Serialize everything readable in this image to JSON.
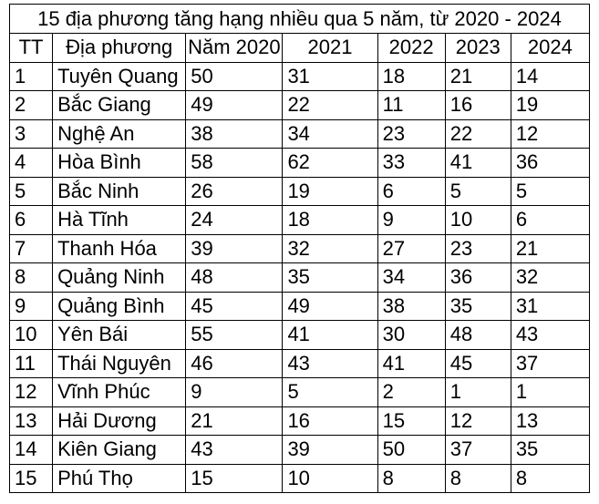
{
  "title": "15 địa phương tăng hạng nhiều qua 5 năm, từ 2020 - 2024",
  "headers": [
    "TT",
    "Địa phương",
    "Năm 2020",
    "2021",
    "2022",
    "2023",
    "2024"
  ],
  "rows": [
    [
      "1",
      "Tuyên Quang",
      "50",
      "31",
      "18",
      "21",
      "14"
    ],
    [
      "2",
      "Bắc Giang",
      "49",
      "22",
      "11",
      "16",
      "19"
    ],
    [
      "3",
      "Nghệ An",
      "38",
      "34",
      "23",
      "22",
      "12"
    ],
    [
      "4",
      "Hòa Bình",
      "58",
      "62",
      "33",
      "41",
      "36"
    ],
    [
      "5",
      "Bắc Ninh",
      "26",
      "19",
      "6",
      "5",
      "5"
    ],
    [
      "6",
      "Hà Tĩnh",
      "24",
      "18",
      "9",
      "10",
      "6"
    ],
    [
      "7",
      "Thanh Hóa",
      "39",
      "32",
      "27",
      "23",
      "21"
    ],
    [
      "8",
      "Quảng Ninh",
      "48",
      "35",
      "34",
      "36",
      "32"
    ],
    [
      "9",
      "Quảng Bình",
      "45",
      "49",
      "38",
      "35",
      "31"
    ],
    [
      "10",
      "Yên Bái",
      "55",
      "41",
      "30",
      "48",
      "43"
    ],
    [
      "11",
      "Thái Nguyên",
      "46",
      "43",
      "41",
      "45",
      "37"
    ],
    [
      "12",
      "Vĩnh Phúc",
      "9",
      "5",
      "2",
      "1",
      "1"
    ],
    [
      "13",
      "Hải Dương",
      "21",
      "16",
      "15",
      "12",
      "13"
    ],
    [
      "14",
      "Kiên Giang",
      "43",
      "39",
      "50",
      "37",
      "35"
    ],
    [
      "15",
      "Phú Thọ",
      "15",
      "10",
      "8",
      "8",
      "8"
    ]
  ]
}
